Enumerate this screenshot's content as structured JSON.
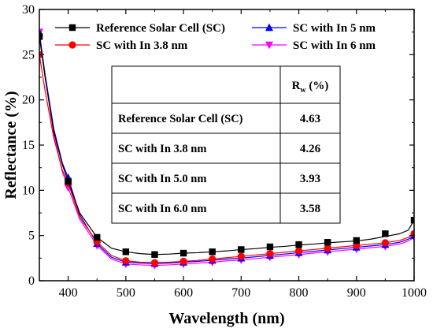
{
  "chart_data": {
    "type": "line",
    "title": "",
    "xlabel": "Wavelength (nm)",
    "ylabel": "Reflectance (%)",
    "xlim": [
      350,
      1000
    ],
    "ylim": [
      0,
      30
    ],
    "xticks": [
      400,
      500,
      600,
      700,
      800,
      900,
      1000
    ],
    "yticks": [
      0,
      5,
      10,
      15,
      20,
      25,
      30
    ],
    "grid": false,
    "legend": "top",
    "series": [
      {
        "name": "Reference Solar Cell (SC)",
        "color": "#000000",
        "marker": "square",
        "x": [
          350,
          360,
          375,
          390,
          400,
          420,
          450,
          475,
          500,
          525,
          550,
          575,
          600,
          625,
          650,
          675,
          700,
          725,
          750,
          775,
          800,
          825,
          850,
          875,
          900,
          925,
          950,
          975,
          990,
          1000
        ],
        "y": [
          27.0,
          22.5,
          16.5,
          12.8,
          11.0,
          7.5,
          4.8,
          3.6,
          3.2,
          3.0,
          2.9,
          2.95,
          3.05,
          3.1,
          3.2,
          3.3,
          3.45,
          3.55,
          3.7,
          3.8,
          3.95,
          4.05,
          4.2,
          4.3,
          4.4,
          4.6,
          4.9,
          5.2,
          5.6,
          6.7
        ],
        "marker_x": [
          350,
          400,
          450,
          500,
          550,
          600,
          650,
          700,
          750,
          800,
          850,
          900,
          950,
          1000
        ],
        "marker_y": [
          27.0,
          11.0,
          4.8,
          3.2,
          2.9,
          3.05,
          3.2,
          3.45,
          3.75,
          4.0,
          4.25,
          4.45,
          5.2,
          6.7
        ]
      },
      {
        "name": "SC with In 3.8 nm",
        "color": "#ff0000",
        "marker": "circle",
        "x": [
          350,
          360,
          375,
          390,
          400,
          420,
          450,
          475,
          500,
          525,
          550,
          575,
          600,
          625,
          650,
          675,
          700,
          725,
          750,
          775,
          800,
          825,
          850,
          875,
          900,
          925,
          950,
          975,
          990,
          1000
        ],
        "y": [
          25.0,
          21.0,
          15.8,
          12.2,
          10.8,
          7.0,
          4.3,
          2.8,
          2.2,
          2.05,
          2.0,
          2.05,
          2.15,
          2.25,
          2.4,
          2.55,
          2.7,
          2.85,
          3.0,
          3.15,
          3.3,
          3.45,
          3.6,
          3.75,
          3.9,
          4.05,
          4.2,
          4.45,
          4.8,
          5.2
        ],
        "marker_x": [
          350,
          400,
          450,
          500,
          550,
          600,
          650,
          700,
          750,
          800,
          850,
          900,
          950,
          1000
        ],
        "marker_y": [
          25.0,
          10.8,
          4.3,
          2.2,
          2.0,
          2.15,
          2.4,
          2.7,
          3.0,
          3.3,
          3.6,
          3.9,
          4.2,
          5.2
        ]
      },
      {
        "name": "SC with In 5 nm",
        "color": "#0000ff",
        "marker": "triangle-up",
        "x": [
          350,
          360,
          375,
          390,
          400,
          420,
          450,
          475,
          500,
          525,
          550,
          575,
          600,
          625,
          650,
          675,
          700,
          725,
          750,
          775,
          800,
          825,
          850,
          875,
          900,
          925,
          950,
          975,
          990,
          1000
        ],
        "y": [
          27.4,
          22.8,
          16.8,
          13.0,
          11.4,
          7.3,
          4.1,
          2.6,
          2.05,
          1.95,
          1.9,
          1.95,
          2.05,
          2.15,
          2.25,
          2.4,
          2.5,
          2.65,
          2.8,
          2.95,
          3.1,
          3.25,
          3.4,
          3.55,
          3.7,
          3.85,
          4.0,
          4.25,
          4.6,
          5.0
        ],
        "marker_x": [
          350,
          400,
          450,
          500,
          550,
          600,
          650,
          700,
          750,
          800,
          850,
          900,
          950,
          1000
        ],
        "marker_y": [
          27.4,
          11.4,
          4.1,
          2.05,
          1.9,
          2.05,
          2.25,
          2.5,
          2.8,
          3.1,
          3.4,
          3.7,
          4.0,
          5.0
        ]
      },
      {
        "name": "SC with In 6 nm",
        "color": "#ff00ff",
        "marker": "triangle-down",
        "x": [
          350,
          360,
          375,
          390,
          400,
          420,
          450,
          475,
          500,
          525,
          550,
          575,
          600,
          625,
          650,
          675,
          700,
          725,
          750,
          775,
          800,
          825,
          850,
          875,
          900,
          925,
          950,
          975,
          990,
          1000
        ],
        "y": [
          27.5,
          22.5,
          16.2,
          12.0,
          10.3,
          6.8,
          3.9,
          2.4,
          1.85,
          1.75,
          1.7,
          1.75,
          1.85,
          1.95,
          2.05,
          2.2,
          2.3,
          2.45,
          2.6,
          2.75,
          2.9,
          3.05,
          3.2,
          3.35,
          3.5,
          3.65,
          3.8,
          4.05,
          4.4,
          4.8
        ],
        "marker_x": [
          350,
          400,
          450,
          500,
          550,
          600,
          650,
          700,
          750,
          800,
          850,
          900,
          950,
          1000
        ],
        "marker_y": [
          27.5,
          10.3,
          3.9,
          1.85,
          1.7,
          1.85,
          2.05,
          2.3,
          2.6,
          2.9,
          3.2,
          3.5,
          3.8,
          4.8
        ]
      }
    ],
    "table": {
      "header": {
        "label": "",
        "value_main": "R",
        "value_sub": "w",
        "value_unit": " (%)"
      },
      "rows": [
        {
          "label": "Reference Solar Cell (SC)",
          "value": "4.63"
        },
        {
          "label": "SC with In 3.8 nm",
          "value": "4.26"
        },
        {
          "label": "SC with In 5.0 nm",
          "value": "3.93"
        },
        {
          "label": "SC with In 6.0 nm",
          "value": "3.58"
        }
      ]
    }
  }
}
